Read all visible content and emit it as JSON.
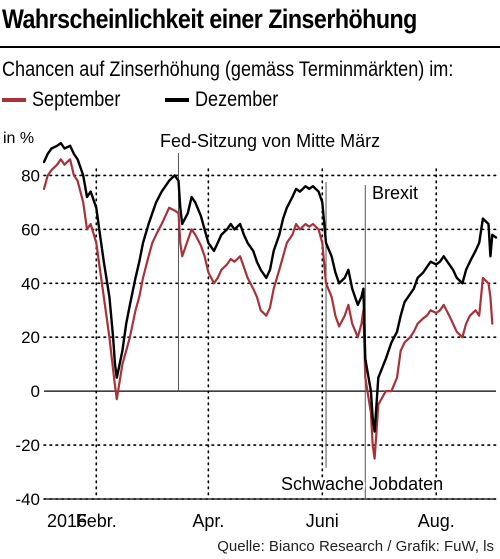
{
  "header": {
    "title": "Wahrscheinlichkeit einer Zinserhöhung",
    "subtitle": "Chancen auf Zinserhöhung (gemäss Terminmärkten) im:"
  },
  "footer": {
    "source": "Quelle: Bianco Research / Grafik: FuW, ls"
  },
  "chart_data": {
    "type": "line",
    "title": "Wahrscheinlichkeit einer Zinserhöhung",
    "subtitle": "Chancen auf Zinserhöhung (gemäss Terminmärkten) im:",
    "ylabel": "in %",
    "ylim": [
      -40,
      95
    ],
    "yticks": [
      -40,
      -20,
      0,
      20,
      40,
      60,
      80
    ],
    "xlim": [
      "2016-01-04",
      "2016-09-02"
    ],
    "xticks": [
      {
        "label": "2016",
        "date": "2016-01-04"
      },
      {
        "label": "Febr.",
        "date": "2016-02-01"
      },
      {
        "label": "Apr.",
        "date": "2016-04-01"
      },
      {
        "label": "Juni",
        "date": "2016-06-01"
      },
      {
        "label": "Aug.",
        "date": "2016-08-01"
      }
    ],
    "grid": "dotted",
    "legend_position": "top-left",
    "colors": {
      "september": "#a8323a",
      "dezember": "#000000"
    },
    "annotations": [
      {
        "text": "Fed-Sitzung von Mitte März",
        "date": "2016-03-16"
      },
      {
        "text": "Brexit",
        "date": "2016-06-24"
      },
      {
        "text": "Schwache Jobdaten",
        "date": "2016-06-03"
      }
    ],
    "series": [
      {
        "name": "September",
        "color": "#a8323a",
        "points": [
          [
            "2016-01-04",
            75
          ],
          [
            "2016-01-06",
            80
          ],
          [
            "2016-01-08",
            82
          ],
          [
            "2016-01-11",
            84
          ],
          [
            "2016-01-13",
            86
          ],
          [
            "2016-01-15",
            84
          ],
          [
            "2016-01-18",
            86
          ],
          [
            "2016-01-20",
            80
          ],
          [
            "2016-01-22",
            78
          ],
          [
            "2016-01-25",
            70
          ],
          [
            "2016-01-27",
            60
          ],
          [
            "2016-01-29",
            62
          ],
          [
            "2016-02-01",
            55
          ],
          [
            "2016-02-03",
            45
          ],
          [
            "2016-02-05",
            35
          ],
          [
            "2016-02-08",
            20
          ],
          [
            "2016-02-10",
            8
          ],
          [
            "2016-02-11",
            2
          ],
          [
            "2016-02-12",
            -3
          ],
          [
            "2016-02-15",
            10
          ],
          [
            "2016-02-17",
            15
          ],
          [
            "2016-02-19",
            20
          ],
          [
            "2016-02-22",
            30
          ],
          [
            "2016-02-24",
            35
          ],
          [
            "2016-02-26",
            42
          ],
          [
            "2016-02-29",
            50
          ],
          [
            "2016-03-02",
            55
          ],
          [
            "2016-03-04",
            58
          ],
          [
            "2016-03-07",
            62
          ],
          [
            "2016-03-09",
            65
          ],
          [
            "2016-03-11",
            68
          ],
          [
            "2016-03-14",
            67
          ],
          [
            "2016-03-16",
            66
          ],
          [
            "2016-03-17",
            55
          ],
          [
            "2016-03-18",
            50
          ],
          [
            "2016-03-21",
            56
          ],
          [
            "2016-03-23",
            60
          ],
          [
            "2016-03-25",
            58
          ],
          [
            "2016-03-28",
            54
          ],
          [
            "2016-03-30",
            50
          ],
          [
            "2016-04-01",
            44
          ],
          [
            "2016-04-04",
            40
          ],
          [
            "2016-04-06",
            42
          ],
          [
            "2016-04-08",
            45
          ],
          [
            "2016-04-11",
            47
          ],
          [
            "2016-04-13",
            49
          ],
          [
            "2016-04-15",
            48
          ],
          [
            "2016-04-18",
            50
          ],
          [
            "2016-04-20",
            46
          ],
          [
            "2016-04-22",
            42
          ],
          [
            "2016-04-25",
            38
          ],
          [
            "2016-04-27",
            35
          ],
          [
            "2016-04-29",
            30
          ],
          [
            "2016-05-02",
            28
          ],
          [
            "2016-05-04",
            31
          ],
          [
            "2016-05-06",
            38
          ],
          [
            "2016-05-09",
            45
          ],
          [
            "2016-05-11",
            50
          ],
          [
            "2016-05-13",
            55
          ],
          [
            "2016-05-16",
            58
          ],
          [
            "2016-05-18",
            62
          ],
          [
            "2016-05-20",
            60
          ],
          [
            "2016-05-23",
            62
          ],
          [
            "2016-05-25",
            61
          ],
          [
            "2016-05-27",
            62
          ],
          [
            "2016-05-30",
            60
          ],
          [
            "2016-06-01",
            55
          ],
          [
            "2016-06-03",
            40
          ],
          [
            "2016-06-06",
            35
          ],
          [
            "2016-06-08",
            28
          ],
          [
            "2016-06-10",
            24
          ],
          [
            "2016-06-13",
            28
          ],
          [
            "2016-06-15",
            32
          ],
          [
            "2016-06-17",
            25
          ],
          [
            "2016-06-20",
            20
          ],
          [
            "2016-06-22",
            25
          ],
          [
            "2016-06-23",
            30
          ],
          [
            "2016-06-24",
            5
          ],
          [
            "2016-06-27",
            -8
          ],
          [
            "2016-06-28",
            -20
          ],
          [
            "2016-06-29",
            -25
          ],
          [
            "2016-06-30",
            -15
          ],
          [
            "2016-07-01",
            -5
          ],
          [
            "2016-07-05",
            0
          ],
          [
            "2016-07-08",
            0
          ],
          [
            "2016-07-11",
            5
          ],
          [
            "2016-07-13",
            15
          ],
          [
            "2016-07-15",
            18
          ],
          [
            "2016-07-18",
            20
          ],
          [
            "2016-07-20",
            22
          ],
          [
            "2016-07-22",
            25
          ],
          [
            "2016-07-25",
            27
          ],
          [
            "2016-07-27",
            28
          ],
          [
            "2016-07-29",
            30
          ],
          [
            "2016-08-01",
            29
          ],
          [
            "2016-08-03",
            30
          ],
          [
            "2016-08-05",
            32
          ],
          [
            "2016-08-08",
            28
          ],
          [
            "2016-08-10",
            25
          ],
          [
            "2016-08-12",
            22
          ],
          [
            "2016-08-15",
            20
          ],
          [
            "2016-08-17",
            25
          ],
          [
            "2016-08-19",
            28
          ],
          [
            "2016-08-22",
            30
          ],
          [
            "2016-08-24",
            28
          ],
          [
            "2016-08-26",
            42
          ],
          [
            "2016-08-29",
            40
          ],
          [
            "2016-08-30",
            35
          ],
          [
            "2016-08-31",
            25
          ]
        ]
      },
      {
        "name": "Dezember",
        "color": "#000000",
        "points": [
          [
            "2016-01-04",
            85
          ],
          [
            "2016-01-06",
            88
          ],
          [
            "2016-01-08",
            90
          ],
          [
            "2016-01-11",
            91
          ],
          [
            "2016-01-13",
            92
          ],
          [
            "2016-01-15",
            90
          ],
          [
            "2016-01-18",
            91
          ],
          [
            "2016-01-20",
            88
          ],
          [
            "2016-01-22",
            86
          ],
          [
            "2016-01-25",
            80
          ],
          [
            "2016-01-27",
            72
          ],
          [
            "2016-01-29",
            74
          ],
          [
            "2016-02-01",
            68
          ],
          [
            "2016-02-03",
            58
          ],
          [
            "2016-02-05",
            48
          ],
          [
            "2016-02-08",
            35
          ],
          [
            "2016-02-10",
            20
          ],
          [
            "2016-02-11",
            10
          ],
          [
            "2016-02-12",
            5
          ],
          [
            "2016-02-15",
            15
          ],
          [
            "2016-02-17",
            25
          ],
          [
            "2016-02-19",
            32
          ],
          [
            "2016-02-22",
            42
          ],
          [
            "2016-02-24",
            48
          ],
          [
            "2016-02-26",
            55
          ],
          [
            "2016-02-29",
            62
          ],
          [
            "2016-03-02",
            66
          ],
          [
            "2016-03-04",
            70
          ],
          [
            "2016-03-07",
            74
          ],
          [
            "2016-03-09",
            76
          ],
          [
            "2016-03-11",
            78
          ],
          [
            "2016-03-14",
            80
          ],
          [
            "2016-03-16",
            78
          ],
          [
            "2016-03-17",
            68
          ],
          [
            "2016-03-18",
            62
          ],
          [
            "2016-03-21",
            66
          ],
          [
            "2016-03-23",
            72
          ],
          [
            "2016-03-25",
            70
          ],
          [
            "2016-03-28",
            65
          ],
          [
            "2016-03-30",
            60
          ],
          [
            "2016-04-01",
            55
          ],
          [
            "2016-04-04",
            52
          ],
          [
            "2016-04-06",
            55
          ],
          [
            "2016-04-08",
            58
          ],
          [
            "2016-04-11",
            60
          ],
          [
            "2016-04-13",
            62
          ],
          [
            "2016-04-15",
            60
          ],
          [
            "2016-04-18",
            62
          ],
          [
            "2016-04-20",
            58
          ],
          [
            "2016-04-22",
            55
          ],
          [
            "2016-04-25",
            52
          ],
          [
            "2016-04-27",
            48
          ],
          [
            "2016-04-29",
            45
          ],
          [
            "2016-05-02",
            42
          ],
          [
            "2016-05-04",
            45
          ],
          [
            "2016-05-06",
            52
          ],
          [
            "2016-05-09",
            58
          ],
          [
            "2016-05-11",
            64
          ],
          [
            "2016-05-13",
            68
          ],
          [
            "2016-05-16",
            72
          ],
          [
            "2016-05-18",
            75
          ],
          [
            "2016-05-20",
            74
          ],
          [
            "2016-05-23",
            76
          ],
          [
            "2016-05-25",
            75
          ],
          [
            "2016-05-27",
            76
          ],
          [
            "2016-05-30",
            74
          ],
          [
            "2016-06-01",
            70
          ],
          [
            "2016-06-03",
            55
          ],
          [
            "2016-06-06",
            50
          ],
          [
            "2016-06-08",
            44
          ],
          [
            "2016-06-10",
            40
          ],
          [
            "2016-06-13",
            42
          ],
          [
            "2016-06-15",
            45
          ],
          [
            "2016-06-17",
            38
          ],
          [
            "2016-06-20",
            32
          ],
          [
            "2016-06-22",
            35
          ],
          [
            "2016-06-23",
            38
          ],
          [
            "2016-06-24",
            12
          ],
          [
            "2016-06-27",
            0
          ],
          [
            "2016-06-28",
            -10
          ],
          [
            "2016-06-29",
            -15
          ],
          [
            "2016-06-30",
            -5
          ],
          [
            "2016-07-01",
            5
          ],
          [
            "2016-07-05",
            12
          ],
          [
            "2016-07-08",
            18
          ],
          [
            "2016-07-11",
            22
          ],
          [
            "2016-07-13",
            28
          ],
          [
            "2016-07-15",
            33
          ],
          [
            "2016-07-18",
            36
          ],
          [
            "2016-07-20",
            38
          ],
          [
            "2016-07-22",
            42
          ],
          [
            "2016-07-25",
            44
          ],
          [
            "2016-07-27",
            46
          ],
          [
            "2016-07-29",
            48
          ],
          [
            "2016-08-01",
            47
          ],
          [
            "2016-08-03",
            48
          ],
          [
            "2016-08-05",
            50
          ],
          [
            "2016-08-08",
            47
          ],
          [
            "2016-08-10",
            45
          ],
          [
            "2016-08-12",
            42
          ],
          [
            "2016-08-15",
            40
          ],
          [
            "2016-08-17",
            45
          ],
          [
            "2016-08-19",
            48
          ],
          [
            "2016-08-22",
            52
          ],
          [
            "2016-08-24",
            55
          ],
          [
            "2016-08-26",
            64
          ],
          [
            "2016-08-29",
            62
          ],
          [
            "2016-08-30",
            50
          ],
          [
            "2016-08-31",
            58
          ],
          [
            "2016-09-02",
            57
          ]
        ]
      }
    ]
  }
}
